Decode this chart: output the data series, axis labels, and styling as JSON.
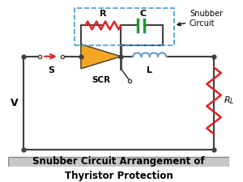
{
  "title": "Snubber Circuit Arrangement of\nThyristor Protection",
  "title_fontsize": 9,
  "bg_color": "#ffffff",
  "caption_bg": "#c8c8c8",
  "wire_color": "#404040",
  "resistor_color": "#dd2222",
  "capacitor_color": "#229933",
  "inductor_color": "#6699cc",
  "scr_fill": "#f5a623",
  "snubber_box_color": "#4499cc",
  "annotation_arrow_color": "#222222",
  "V_label": "V",
  "S_label": "S",
  "SCR_label": "SCR",
  "L_label": "L",
  "RL_label": "R",
  "R_label": "R",
  "C_label": "C",
  "snubber_label": "Snubber\nCircuit"
}
